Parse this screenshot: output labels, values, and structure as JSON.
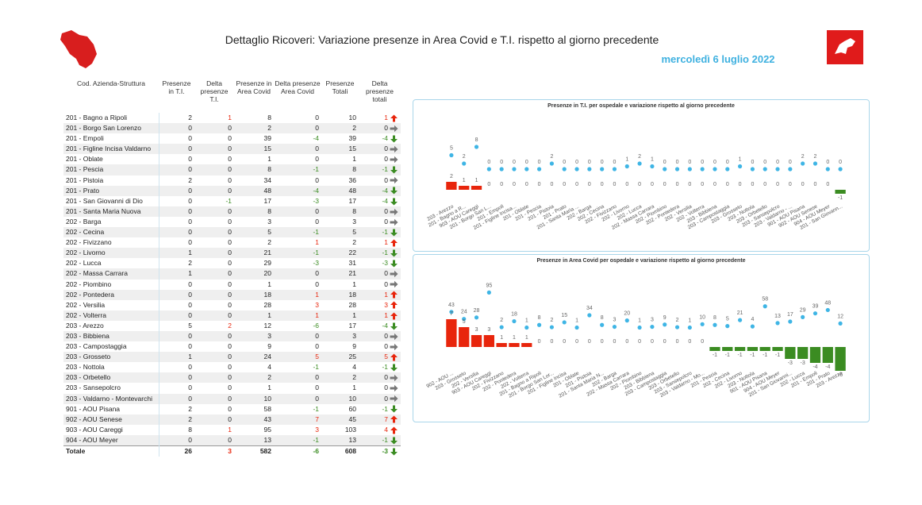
{
  "header": {
    "title": "Dettaglio Ricoveri: Variazione presenze in Area Covid e T.I. rispetto al giorno precedente",
    "date": "mercoledì 6 luglio 2022"
  },
  "table": {
    "headers": [
      "Cod. Azienda-Struttura",
      "Presenze in T.I.",
      "Delta presenze T.I.",
      "Presenze in Area Covid",
      "Delta presenze Area Covid",
      "Presenze Totali",
      "Delta presenze totali"
    ],
    "rows": [
      [
        "201 - Bagno a Ripoli",
        2,
        1,
        8,
        0,
        10,
        1
      ],
      [
        "201 - Borgo San Lorenzo",
        0,
        0,
        2,
        0,
        2,
        0
      ],
      [
        "201 - Empoli",
        0,
        0,
        39,
        -4,
        39,
        -4
      ],
      [
        "201 - Figline Incisa Valdarno",
        0,
        0,
        15,
        0,
        15,
        0
      ],
      [
        "201 - Oblate",
        0,
        0,
        1,
        0,
        1,
        0
      ],
      [
        "201 - Pescia",
        0,
        0,
        8,
        -1,
        8,
        -1
      ],
      [
        "201 - Pistoia",
        2,
        0,
        34,
        0,
        36,
        0
      ],
      [
        "201 - Prato",
        0,
        0,
        48,
        -4,
        48,
        -4
      ],
      [
        "201 - San Giovanni di Dio",
        0,
        -1,
        17,
        -3,
        17,
        -4
      ],
      [
        "201 - Santa Maria Nuova",
        0,
        0,
        8,
        0,
        8,
        0
      ],
      [
        "202 - Barga",
        0,
        0,
        3,
        0,
        3,
        0
      ],
      [
        "202 - Cecina",
        0,
        0,
        5,
        -1,
        5,
        -1
      ],
      [
        "202 - Fivizzano",
        0,
        0,
        2,
        1,
        2,
        1
      ],
      [
        "202 - Livorno",
        1,
        0,
        21,
        -1,
        22,
        -1
      ],
      [
        "202 - Lucca",
        2,
        0,
        29,
        -3,
        31,
        -3
      ],
      [
        "202 - Massa Carrara",
        1,
        0,
        20,
        0,
        21,
        0
      ],
      [
        "202 - Piombino",
        0,
        0,
        1,
        0,
        1,
        0
      ],
      [
        "202 - Pontedera",
        0,
        0,
        18,
        1,
        18,
        1
      ],
      [
        "202 - Versilia",
        0,
        0,
        28,
        3,
        28,
        3
      ],
      [
        "202 - Volterra",
        0,
        0,
        1,
        1,
        1,
        1
      ],
      [
        "203 - Arezzo",
        5,
        2,
        12,
        -6,
        17,
        -4
      ],
      [
        "203 - Bibbiena",
        0,
        0,
        3,
        0,
        3,
        0
      ],
      [
        "203 - Campostaggia",
        0,
        0,
        9,
        0,
        9,
        0
      ],
      [
        "203 - Grosseto",
        1,
        0,
        24,
        5,
        25,
        5
      ],
      [
        "203 - Nottola",
        0,
        0,
        4,
        -1,
        4,
        -1
      ],
      [
        "203 - Orbetello",
        0,
        0,
        2,
        0,
        2,
        0
      ],
      [
        "203 - Sansepolcro",
        0,
        0,
        1,
        0,
        1,
        0
      ],
      [
        "203 - Valdarno - Montevarchi",
        0,
        0,
        10,
        0,
        10,
        0
      ],
      [
        "901 - AOU Pisana",
        2,
        0,
        58,
        -1,
        60,
        -1
      ],
      [
        "902 - AOU Senese",
        2,
        0,
        43,
        7,
        45,
        7
      ],
      [
        "903 - AOU Careggi",
        8,
        1,
        95,
        3,
        103,
        4
      ],
      [
        "904 - AOU Meyer",
        0,
        0,
        13,
        -1,
        13,
        -1
      ]
    ],
    "total": [
      "Totale",
      26,
      3,
      582,
      -6,
      608,
      -3
    ],
    "positive_color": "#e8250c",
    "negative_color": "#3b8c22",
    "zero_color": "#777777"
  },
  "chart_data": [
    {
      "type": "combo",
      "title": "Presenze in T.I. per ospedale e variazione rispetto al giorno precedente",
      "categories": [
        "203 - Arezzo",
        "201 - Bagno a R...",
        "903 - AOU Careggi",
        "201 - Borgo San L...",
        "201 - Empoli",
        "201 - Figline Incisa...",
        "201 - Oblate",
        "201 - Pescia",
        "201 - Pistoia",
        "201 - Prato",
        "201 - Santa Maria ...",
        "202 - Barga",
        "202 - Cecina",
        "202 - Fivizzano",
        "202 - Livorno",
        "202 - Lucca",
        "202 - Massa Carrara",
        "202 - Piombino",
        "202 - Pontedera",
        "202 - Versilia",
        "202 - Volterra",
        "203 - Bibbiena",
        "203 - Campostaggia",
        "203 - Grosseto",
        "203 - Nottola",
        "203 - Orbetello",
        "203 - Sansepolcro",
        "203 - Valdarno - ...",
        "901 - AOU Pisana",
        "902 - AOU Senese",
        "904 - AOU Meyer",
        "201 - San Giovann..."
      ],
      "series": [
        {
          "color": "#3fb5e5",
          "values": [
            5,
            2,
            8,
            0,
            0,
            0,
            0,
            0,
            2,
            0,
            0,
            0,
            0,
            0,
            1,
            2,
            1,
            0,
            0,
            0,
            0,
            0,
            0,
            1,
            0,
            0,
            0,
            0,
            2,
            2,
            0,
            0
          ]
        },
        {
          "axis": "y2",
          "color": "#e8250c",
          "negative_color": "#3b8c22",
          "values": [
            2,
            1,
            1,
            0,
            0,
            0,
            0,
            0,
            0,
            0,
            0,
            0,
            0,
            0,
            0,
            0,
            0,
            0,
            0,
            0,
            0,
            0,
            0,
            0,
            0,
            0,
            0,
            0,
            0,
            0,
            0,
            -1
          ]
        }
      ],
      "ylim": [
        0,
        10
      ],
      "y2lim": [
        -4,
        4
      ]
    },
    {
      "type": "combo",
      "title": "Presenze in Area Covid per ospedale e variazione rispetto al giorno precedente",
      "categories": [
        "902 - AOU ...",
        "203 - Grosseto",
        "202 - Versilia",
        "903 - AOU Careggi",
        "202 - Fivizzano",
        "202 - Pontedera",
        "202 - Volterra",
        "201 - Bagno a Ripoli",
        "201 - Borgo San Lor...",
        "201 - Figline Incisa",
        "201 - Oblate",
        "201 - Pistoia",
        "201 - Santa Maria N...",
        "202 - Barga",
        "202 - Massa Carrara",
        "202 - Piombino",
        "203 - Bibbiena",
        "203 - Campostaggia",
        "203 - Orbetello",
        "203 - Sansepolcro",
        "203 - Valdarno - Mo...",
        "201 - Pescia",
        "202 - Cecina",
        "202 - Livorno",
        "203 - Nottola",
        "901 - AOU Pisana",
        "904 - AOU Meyer",
        "201 - San Giovanni...",
        "202 - Lucca",
        "201 - Empoli",
        "201 - Prato",
        "203 - Arezzo"
      ],
      "series": [
        {
          "color": "#3fb5e5",
          "values": [
            43,
            24,
            28,
            95,
            2,
            18,
            1,
            8,
            2,
            15,
            1,
            34,
            8,
            3,
            20,
            1,
            3,
            9,
            2,
            1,
            10,
            8,
            5,
            21,
            4,
            58,
            13,
            17,
            29,
            39,
            48,
            12
          ]
        },
        {
          "axis": "y2",
          "color": "#e8250c",
          "negative_color": "#3b8c22",
          "values": [
            7,
            5,
            3,
            3,
            1,
            1,
            1,
            0,
            0,
            0,
            0,
            0,
            0,
            0,
            0,
            0,
            0,
            0,
            0,
            0,
            0,
            -1,
            -1,
            -1,
            -1,
            -1,
            -1,
            -3,
            -3,
            -4,
            -4,
            -6
          ]
        }
      ],
      "ylim": [
        0,
        100
      ],
      "y2lim": [
        -8,
        8
      ]
    }
  ]
}
